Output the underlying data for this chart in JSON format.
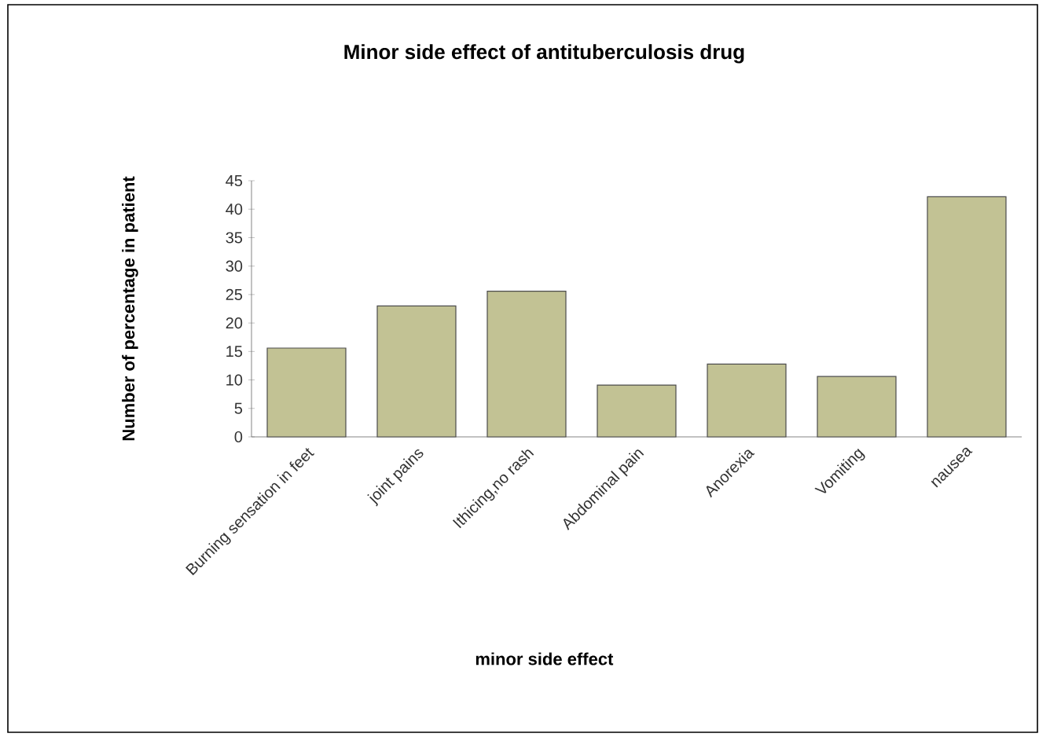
{
  "chart_data": {
    "type": "bar",
    "title": "Minor side effect of antituberculosis drug",
    "xlabel": "minor side effect",
    "ylabel": "Number of percentage in patient",
    "categories": [
      "Burning sensation in feet",
      "joint pains",
      "Ithicing,no rash",
      "Abdominal pain",
      "Anorexia",
      "Vomiting",
      "nausea"
    ],
    "values": [
      15.6,
      23.0,
      25.6,
      9.1,
      12.8,
      10.6,
      42.2
    ],
    "color": "#c2c294",
    "ylim": [
      0,
      45
    ],
    "yticks": [
      0,
      5,
      10,
      15,
      20,
      25,
      30,
      35,
      40,
      45
    ],
    "grid": false
  }
}
